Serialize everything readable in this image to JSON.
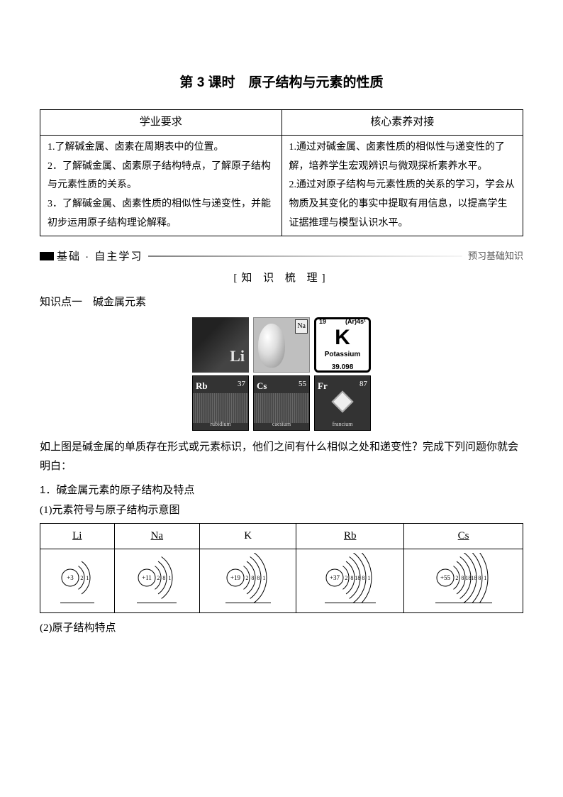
{
  "title": "第 3 课时　原子结构与元素的性质",
  "table_headers": [
    "学业要求",
    "核心素养对接"
  ],
  "left_cell": "1.了解碱金属、卤素在周期表中的位置。\n2．了解碱金属、卤素原子结构特点，了解原子结构与元素性质的关系。\n3．了解碱金属、卤素性质的相似性与递变性，并能初步运用原子结构理论解释。",
  "right_cell": "1.通过对碱金属、卤素性质的相似性与递变性的了解，培养学生宏观辨识与微观探析素养水平。\n2.通过对原子结构与元素性质的关系的学习，学会从物质及其变化的事实中提取有用信息，以提高学生证据推理与模型认识水平。",
  "section_label": "基础 · 自主学习",
  "section_right": "预习基础知识",
  "zsxl": "[知 识 梳 理]",
  "kp_title": "知识点一　碱金属元素",
  "img_tiles": {
    "row1": [
      {
        "sym": "Li",
        "num": ""
      },
      {
        "sym": "Na",
        "num": ""
      },
      {
        "type": "K",
        "num": "19",
        "cfg": "(Ar)4s¹",
        "big": "K",
        "name": "Potassium",
        "mass": "39.098"
      }
    ],
    "row2": [
      {
        "sym": "Rb",
        "num": "37",
        "foot": "rubidium"
      },
      {
        "sym": "Cs",
        "num": "55",
        "foot": "caesium"
      },
      {
        "sym": "Fr",
        "num": "87",
        "foot": "francium",
        "haz": true
      }
    ]
  },
  "para": "如上图是碱金属的单质存在形式或元素标识，他们之间有什么相似之处和递变性？完成下列问题你就会明白：",
  "p1": "1．碱金属元素的原子结构及特点",
  "p1_1": "(1)元素符号与原子结构示意图",
  "sym_headers": [
    "Li",
    "Na",
    "K",
    "Rb",
    "Cs"
  ],
  "atoms": [
    {
      "z": "+3",
      "shells": [
        2,
        1
      ]
    },
    {
      "z": "+11",
      "shells": [
        2,
        8,
        1
      ]
    },
    {
      "z": "+19",
      "shells": [
        2,
        8,
        8,
        1
      ]
    },
    {
      "z": "+37",
      "shells": [
        2,
        8,
        18,
        8,
        1
      ]
    },
    {
      "z": "+55",
      "shells": [
        2,
        8,
        18,
        18,
        8,
        1
      ]
    }
  ],
  "p1_2": "(2)原子结构特点",
  "colors": {
    "black": "#000",
    "grey": "#555",
    "tilebg": "#333"
  }
}
